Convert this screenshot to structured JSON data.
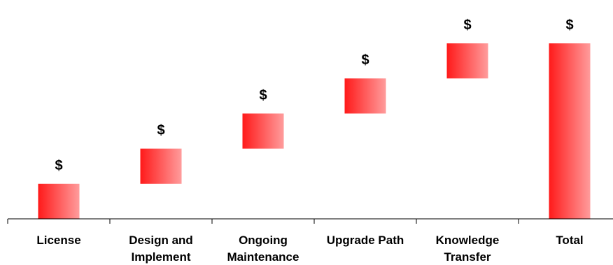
{
  "chart_data": {
    "type": "bar",
    "subtype": "waterfall",
    "categories": [
      "License",
      "Design and Implement",
      "Ongoing Maintenance",
      "Upgrade Path",
      "Knowledge Transfer",
      "Total"
    ],
    "category_label_lines": [
      [
        "License"
      ],
      [
        "Design and",
        "Implement"
      ],
      [
        "Ongoing",
        "Maintenance"
      ],
      [
        "Upgrade Path"
      ],
      [
        "Knowledge",
        "Transfer"
      ],
      [
        "Total"
      ]
    ],
    "series": [
      {
        "values": [
          1,
          1,
          1,
          1,
          1,
          5
        ],
        "bases": [
          0,
          1,
          2,
          3,
          4,
          0
        ]
      }
    ],
    "data_labels": [
      "$",
      "$",
      "$",
      "$",
      "$",
      "$"
    ],
    "ylim": [
      0,
      5
    ],
    "grid": false,
    "legend": "none",
    "title": "",
    "xlabel": "",
    "ylabel": "",
    "colors": {
      "bar_dark": "#ff1a1a",
      "bar_light": "#ff9c9c",
      "axis": "#000000"
    }
  }
}
